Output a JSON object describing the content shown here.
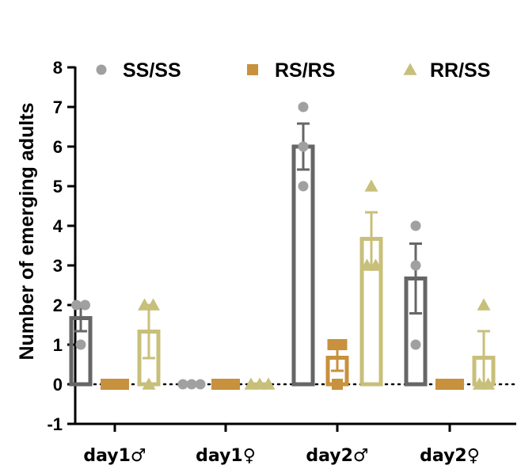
{
  "chart_data": {
    "type": "bar",
    "title": "",
    "xlabel": "",
    "ylabel": "Number of emerging adults",
    "ylim": [
      -1,
      8
    ],
    "yticks": [
      -1,
      0,
      1,
      2,
      3,
      4,
      5,
      6,
      7,
      8
    ],
    "categories": [
      "day1♂",
      "day1♀",
      "day2♂",
      "day2♀"
    ],
    "legend_position": "top",
    "grid": false,
    "reference_line": {
      "y": 0,
      "style": "dotted"
    },
    "series": [
      {
        "name": "SS/SS",
        "color": "#666666",
        "marker_color": "#a0a0a0",
        "marker": "circle",
        "values": [
          1.67,
          0,
          6.0,
          2.67
        ],
        "sem": [
          0.33,
          0,
          0.58,
          0.88
        ],
        "points": [
          [
            2,
            2,
            1
          ],
          [
            0,
            0,
            0
          ],
          [
            7,
            6,
            5
          ],
          [
            4,
            3,
            1
          ]
        ]
      },
      {
        "name": "RS/RS",
        "color": "#c8913e",
        "marker_color": "#c8913e",
        "marker": "square",
        "values": [
          0,
          0,
          0.67,
          0
        ],
        "sem": [
          0,
          0,
          0.33,
          0
        ],
        "points": [
          [
            0,
            0,
            0
          ],
          [
            0,
            0,
            0
          ],
          [
            1,
            1,
            0
          ],
          [
            0,
            0,
            0
          ]
        ]
      },
      {
        "name": "RR/SS",
        "color": "#c8bf7a",
        "marker_color": "#c8bf7a",
        "marker": "triangle",
        "values": [
          1.33,
          0,
          3.67,
          0.67
        ],
        "sem": [
          0.67,
          0,
          0.67,
          0.67
        ],
        "points": [
          [
            2,
            2,
            0
          ],
          [
            0,
            0,
            0
          ],
          [
            5,
            3,
            3
          ],
          [
            2,
            0,
            0
          ]
        ]
      }
    ]
  }
}
